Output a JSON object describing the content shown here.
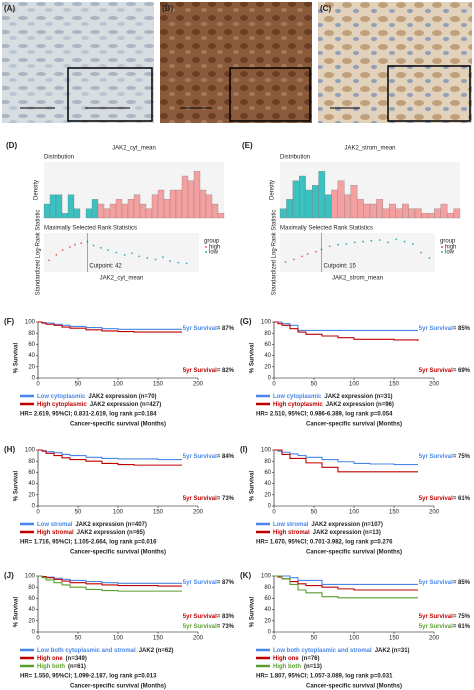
{
  "image_panels": [
    {
      "label": "(A)"
    },
    {
      "label": "(B)"
    },
    {
      "label": "(C)"
    }
  ],
  "chart_data": [
    {
      "type": "histogram",
      "panel": "(D)",
      "title": "JAK2_cyt_mean",
      "subtitle": "Distribution",
      "ylabel": "Density",
      "bins": [
        0,
        5,
        10,
        15,
        20,
        25,
        30,
        35,
        40,
        45,
        50,
        55,
        60,
        65,
        70,
        75,
        80,
        85,
        90,
        95,
        100,
        105,
        110,
        115,
        120,
        125,
        130,
        135,
        140,
        145,
        150
      ],
      "values": [
        3,
        5,
        5,
        1,
        5,
        2,
        0,
        2,
        4,
        3,
        2,
        3,
        4,
        3,
        4,
        5,
        3,
        2,
        5,
        6,
        4,
        6,
        6,
        9,
        8,
        10,
        6,
        5,
        3,
        1
      ],
      "xlim": [
        0,
        150
      ],
      "ylim": [
        0,
        12
      ],
      "cutpoint": 42,
      "cutpoint_label": "Cutpoint: 42",
      "low_color": "#3cc0c0",
      "high_color": "#f4a0a0",
      "rank_title": "Maximally Selected Rank Statistics",
      "rank_ylabel": "Standardized Log-Rank Statistic",
      "rank_stats": {
        "x": [
          5,
          12,
          18,
          25,
          30,
          36,
          42,
          48,
          55,
          62,
          70,
          78,
          85,
          92,
          100,
          108,
          115,
          122,
          130,
          138
        ],
        "values": [
          0.5,
          1.2,
          1.8,
          2.2,
          2.5,
          2.7,
          2.9,
          2.4,
          2.1,
          1.8,
          1.5,
          1.2,
          1.4,
          1.0,
          0.8,
          0.6,
          0.9,
          0.4,
          0.2,
          0.1
        ],
        "ylim": [
          -1,
          4
        ]
      },
      "xlabel": "JAK2_cyt_mean",
      "legend_title": "group",
      "legend_labels": [
        "high",
        "low"
      ]
    },
    {
      "type": "histogram",
      "panel": "(E)",
      "title": "JAK2_strom_mean",
      "subtitle": "Distribution",
      "ylabel": "Density",
      "bins": [
        0,
        2,
        4,
        6,
        8,
        10,
        12,
        14,
        16,
        18,
        20,
        22,
        24,
        26,
        28,
        30,
        32,
        34,
        36,
        38,
        40,
        42,
        44,
        46,
        48,
        50,
        52,
        54,
        56
      ],
      "values": [
        2,
        4,
        8,
        9,
        6,
        7,
        10,
        5,
        6,
        8,
        5,
        7,
        4,
        3,
        3,
        4,
        2,
        3,
        2,
        3,
        2,
        2,
        1,
        1,
        2,
        3,
        1,
        2
      ],
      "xlim": [
        0,
        56
      ],
      "ylim": [
        0,
        12
      ],
      "cutpoint": 15,
      "cutpoint_label": "Cutpoint: 15",
      "low_color": "#3cc0c0",
      "high_color": "#f4a0a0",
      "rank_title": "Maximally Selected Rank Statistics",
      "rank_ylabel": "Standardized Log-Rank Statistic",
      "rank_stats": {
        "x": [
          2,
          5,
          8,
          10,
          13,
          15,
          18,
          21,
          24,
          27,
          30,
          33,
          36,
          39,
          42,
          45,
          48,
          51,
          54
        ],
        "values": [
          0.3,
          0.6,
          1.0,
          1.3,
          1.6,
          1.9,
          2.3,
          2.5,
          2.6,
          2.8,
          2.9,
          3.0,
          3.1,
          2.8,
          3.2,
          2.9,
          2.6,
          1.5,
          0.8
        ],
        "ylim": [
          -1,
          4
        ]
      },
      "xlabel": "JAK2_strom_mean",
      "legend_title": "group",
      "legend_labels": [
        "high",
        "low"
      ]
    },
    {
      "type": "km",
      "panel": "(F)",
      "ylabel": "% Survival",
      "xlabel": "Cancer-specific survival (Months)",
      "xlim": [
        0,
        200
      ],
      "ylim": [
        0,
        100
      ],
      "xticks": [
        0,
        50,
        100,
        150,
        200
      ],
      "yticks": [
        0,
        20,
        40,
        60,
        80,
        100
      ],
      "series": [
        {
          "name": "Low cytoplasmic",
          "name_suffix": "JAK2 expression (n=70)",
          "color": "#4a86e8",
          "x": [
            0,
            5,
            10,
            20,
            30,
            40,
            60,
            80,
            100,
            120,
            150,
            180
          ],
          "values": [
            100,
            99,
            98,
            96,
            94,
            92,
            90,
            88,
            87,
            87,
            87,
            87
          ]
        },
        {
          "name": "High cytoplasmic",
          "name_suffix": "JAK2 expression (n=427)",
          "color": "#c00000",
          "x": [
            0,
            5,
            10,
            20,
            30,
            40,
            60,
            80,
            100,
            120,
            150,
            180
          ],
          "values": [
            100,
            98,
            96,
            94,
            91,
            89,
            86,
            84,
            83,
            82,
            82,
            82
          ]
        }
      ],
      "annotations": [
        {
          "text": "5yr Survival",
          "value_label": "= 87%",
          "color": "#4a86e8"
        },
        {
          "text": "5yr Survival",
          "value_label": "= 82%",
          "color": "#c00000"
        }
      ],
      "stats": "HR= 2.619, 95%CI; 0.831-2.619, log rank p=0.184"
    },
    {
      "type": "km",
      "panel": "(G)",
      "ylabel": "% Survival",
      "xlabel": "Cancer-specific survival (Months)",
      "xlim": [
        0,
        200
      ],
      "ylim": [
        0,
        100
      ],
      "xticks": [
        0,
        50,
        100,
        150,
        200
      ],
      "yticks": [
        0,
        20,
        40,
        60,
        80,
        100
      ],
      "series": [
        {
          "name": "Low cytoplasmic",
          "name_suffix": "JAK2 expression (n=31)",
          "color": "#4a86e8",
          "x": [
            0,
            5,
            10,
            20,
            30,
            60,
            180
          ],
          "values": [
            100,
            100,
            97,
            94,
            85,
            85,
            85
          ]
        },
        {
          "name": "High cytoplasmic",
          "name_suffix": "JAK2 expression (n=96)",
          "color": "#c00000",
          "x": [
            0,
            5,
            10,
            20,
            30,
            40,
            60,
            80,
            100,
            120,
            150,
            180
          ],
          "values": [
            100,
            97,
            94,
            88,
            82,
            78,
            75,
            72,
            69,
            69,
            68,
            66
          ]
        }
      ],
      "annotations": [
        {
          "text": "5yr Survival",
          "value_label": "= 85%",
          "color": "#4a86e8"
        },
        {
          "text": "5yr Survival",
          "value_label": "= 69%",
          "color": "#c00000"
        }
      ],
      "stats": "HR= 2.510, 95%CI; 0.986-6.389, log rank p=0.054"
    },
    {
      "type": "km",
      "panel": "(H)",
      "ylabel": "% Survival",
      "xlabel": "Cancer-specific survival (Months)",
      "xlim": [
        0,
        200
      ],
      "ylim": [
        0,
        100
      ],
      "xticks": [
        0,
        50,
        100,
        150,
        200
      ],
      "yticks": [
        0,
        20,
        40,
        60,
        80,
        100
      ],
      "series": [
        {
          "name": "Low stromal",
          "name_suffix": "JAK2 expression (n=407)",
          "color": "#4a86e8",
          "x": [
            0,
            5,
            10,
            20,
            30,
            40,
            60,
            80,
            100,
            120,
            150,
            180
          ],
          "values": [
            100,
            99,
            97,
            95,
            92,
            90,
            87,
            85,
            84,
            84,
            83,
            83
          ]
        },
        {
          "name": "High stromal",
          "name_suffix": "JAK2 expression (n=65)",
          "color": "#c00000",
          "x": [
            0,
            5,
            10,
            20,
            30,
            40,
            60,
            80,
            100,
            120,
            150,
            180
          ],
          "values": [
            100,
            98,
            94,
            90,
            86,
            83,
            80,
            76,
            74,
            73,
            73,
            73
          ]
        }
      ],
      "annotations": [
        {
          "text": "5yr Survival",
          "value_label": "= 84%",
          "color": "#4a86e8"
        },
        {
          "text": "5yr Survival",
          "value_label": "= 73%",
          "color": "#c00000"
        }
      ],
      "stats": "HR= 1.716, 95%CI; 1.105-2.664, log rank p=0.016"
    },
    {
      "type": "km",
      "panel": "(I)",
      "ylabel": "% Survival",
      "xlabel": "Cancer-specific survival (Months)",
      "xlim": [
        0,
        200
      ],
      "ylim": [
        0,
        100
      ],
      "xticks": [
        0,
        50,
        100,
        150,
        200
      ],
      "yticks": [
        0,
        20,
        40,
        60,
        80,
        100
      ],
      "series": [
        {
          "name": "Low stromal",
          "name_suffix": "JAK2 expression (n=107)",
          "color": "#4a86e8",
          "x": [
            0,
            5,
            10,
            20,
            30,
            40,
            60,
            80,
            100,
            120,
            150,
            180
          ],
          "values": [
            100,
            98,
            96,
            93,
            90,
            87,
            83,
            79,
            76,
            75,
            74,
            74
          ]
        },
        {
          "name": "High stromal",
          "name_suffix": "JAK2 expression (n=13)",
          "color": "#c00000",
          "x": [
            0,
            10,
            20,
            40,
            60,
            80,
            120,
            180
          ],
          "values": [
            100,
            92,
            85,
            77,
            69,
            61,
            61,
            61
          ]
        }
      ],
      "annotations": [
        {
          "text": "5yr Survival",
          "value_label": "= 75%",
          "color": "#4a86e8"
        },
        {
          "text": "5yr Survival",
          "value_label": "= 61%",
          "color": "#c00000"
        }
      ],
      "stats": "HR= 1.670, 95%CI; 0.701-3.982, log rank p=0.276"
    },
    {
      "type": "km",
      "panel": "(J)",
      "ylabel": "% Survival",
      "xlabel": "Cancer-specific survival (Months)",
      "xlim": [
        0,
        200
      ],
      "ylim": [
        0,
        100
      ],
      "xticks": [
        0,
        50,
        100,
        150,
        200
      ],
      "yticks": [
        0,
        20,
        40,
        60,
        80,
        100
      ],
      "series": [
        {
          "name": "Low both cytoplasmic and stromal",
          "name_suffix": "JAK2 (n=62)",
          "color": "#4a86e8",
          "x": [
            0,
            5,
            10,
            20,
            30,
            40,
            60,
            80,
            100,
            120,
            150,
            180
          ],
          "values": [
            100,
            99,
            98,
            96,
            94,
            92,
            90,
            88,
            87,
            87,
            87,
            87
          ]
        },
        {
          "name": "High one",
          "name_suffix": "(n=349)",
          "color": "#c00000",
          "x": [
            0,
            5,
            10,
            20,
            30,
            40,
            60,
            80,
            100,
            120,
            150,
            180
          ],
          "values": [
            100,
            99,
            97,
            94,
            91,
            88,
            86,
            84,
            83,
            83,
            82,
            82
          ]
        },
        {
          "name": "High both",
          "name_suffix": "(n=61)",
          "color": "#5a9e2f",
          "x": [
            0,
            5,
            10,
            20,
            30,
            40,
            60,
            80,
            100,
            120,
            150,
            180
          ],
          "values": [
            100,
            97,
            93,
            88,
            84,
            80,
            76,
            74,
            73,
            73,
            73,
            73
          ]
        }
      ],
      "annotations": [
        {
          "text": "5yr Survival",
          "value_label": "= 87%",
          "color": "#4a86e8"
        },
        {
          "text": "5yr Survival",
          "value_label": "= 83%",
          "color": "#c00000"
        },
        {
          "text": "5yr Survival",
          "value_label": "= 73%",
          "color": "#5a9e2f"
        }
      ],
      "stats": "HR= 1.550, 95%CI; 1.099-2.187, log rank p=0.013"
    },
    {
      "type": "km",
      "panel": "(K)",
      "ylabel": "% Survival",
      "xlabel": "Cancer-specific survival (Months)",
      "xlim": [
        0,
        200
      ],
      "ylim": [
        0,
        100
      ],
      "xticks": [
        0,
        50,
        100,
        150,
        200
      ],
      "yticks": [
        0,
        20,
        40,
        60,
        80,
        100
      ],
      "series": [
        {
          "name": "Low both cytoplasmic and stromal",
          "name_suffix": "JAK2 (n=31)",
          "color": "#4a86e8",
          "x": [
            0,
            10,
            20,
            30,
            60,
            180
          ],
          "values": [
            100,
            100,
            97,
            92,
            85,
            85
          ]
        },
        {
          "name": "High one",
          "name_suffix": "(n=76)",
          "color": "#c00000",
          "x": [
            0,
            5,
            10,
            20,
            30,
            40,
            60,
            80,
            100,
            120,
            150,
            180
          ],
          "values": [
            100,
            98,
            95,
            90,
            86,
            83,
            80,
            77,
            75,
            75,
            75,
            75
          ]
        },
        {
          "name": "High both",
          "name_suffix": "(n=13)",
          "color": "#5a9e2f",
          "x": [
            0,
            10,
            20,
            30,
            40,
            60,
            80,
            180
          ],
          "values": [
            100,
            95,
            85,
            75,
            70,
            63,
            61,
            61
          ]
        }
      ],
      "annotations": [
        {
          "text": "5yr Survival",
          "value_label": "= 85%",
          "color": "#4a86e8"
        },
        {
          "text": "5yr Survival",
          "value_label": "= 75%",
          "color": "#c00000"
        },
        {
          "text": "5yr Survival",
          "value_label": "= 61%",
          "color": "#5a9e2f"
        }
      ],
      "stats": "HR= 1.807, 95%CI; 1.057-3.089, log rank p=0.031"
    }
  ]
}
